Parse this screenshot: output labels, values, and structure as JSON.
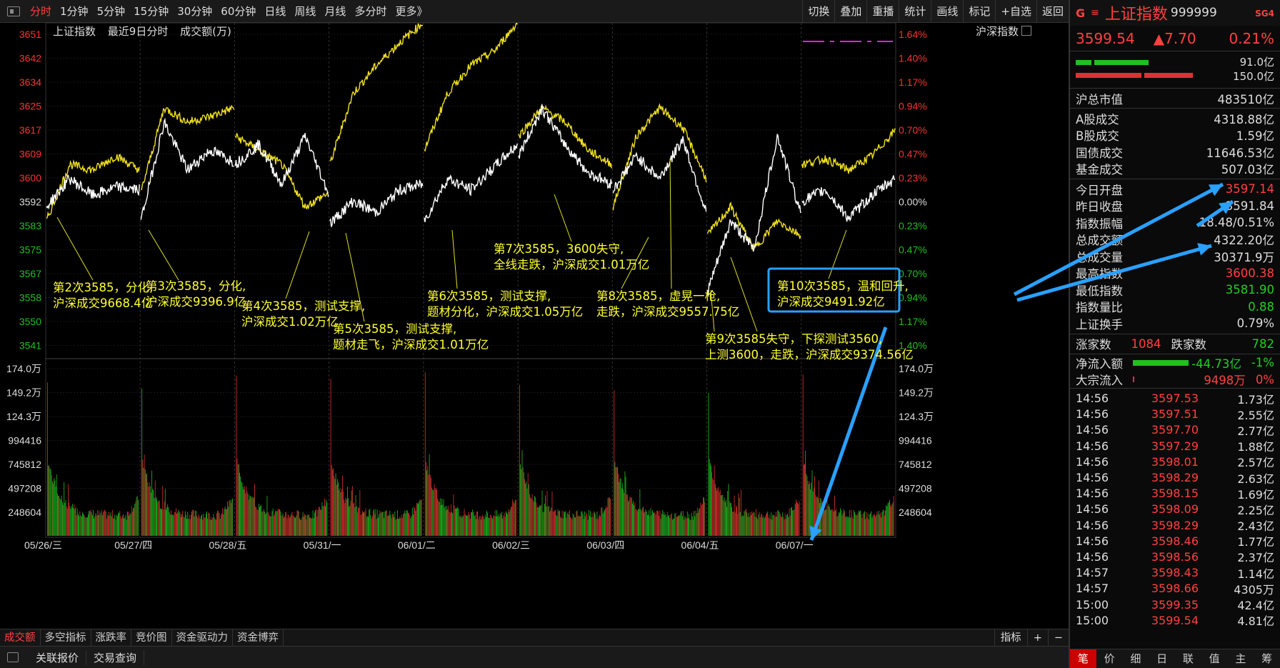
{
  "topbar": {
    "periods": [
      "分时",
      "1分钟",
      "5分钟",
      "15分钟",
      "30分钟",
      "60分钟",
      "日线",
      "周线",
      "月线",
      "多分时",
      "更多》"
    ],
    "active_index": 0,
    "tools": [
      "切换",
      "叠加",
      "重播",
      "统计",
      "画线",
      "标记",
      "+自选",
      "返回"
    ]
  },
  "chart": {
    "title": "上证指数",
    "subtitle": "最近9日分时",
    "volume_label": "成交额(万)",
    "index_label": "沪深指数",
    "price_ticks": [
      {
        "v": 3651,
        "c": "red"
      },
      {
        "v": 3642,
        "c": "red"
      },
      {
        "v": 3634,
        "c": "red"
      },
      {
        "v": 3625,
        "c": "red"
      },
      {
        "v": 3617,
        "c": "red"
      },
      {
        "v": 3609,
        "c": "red"
      },
      {
        "v": 3600,
        "c": "red"
      },
      {
        "v": 3592,
        "c": "white"
      },
      {
        "v": 3583,
        "c": "green"
      },
      {
        "v": 3575,
        "c": "green"
      },
      {
        "v": 3567,
        "c": "green"
      },
      {
        "v": 3558,
        "c": "green"
      },
      {
        "v": 3550,
        "c": "green"
      },
      {
        "v": 3541,
        "c": "green"
      }
    ],
    "pct_ticks": [
      "1.64%",
      "1.40%",
      "1.17%",
      "0.94%",
      "0.70%",
      "0.47%",
      "0.23%",
      "0.00%",
      "0.23%",
      "0.47%",
      "0.70%",
      "0.94%",
      "1.17%",
      "1.40%"
    ],
    "volume_ticks": [
      "174.0万",
      "149.2万",
      "124.3万",
      "994416",
      "745812",
      "497208",
      "248604"
    ],
    "dates": [
      "05/26/三",
      "05/27/四",
      "05/28/五",
      "05/31/一",
      "06/01/二",
      "06/02/三",
      "06/03/四",
      "06/04/五",
      "06/07/一"
    ]
  },
  "annotations": [
    {
      "id": "a2",
      "lines": [
        "第2次3585，分化,",
        "沪深成交9668.4亿"
      ]
    },
    {
      "id": "a3",
      "lines": [
        "第3次3585，分化,",
        "沪深成交9396.9亿"
      ]
    },
    {
      "id": "a4",
      "lines": [
        "第4次3585，测试支撑,",
        "沪深成交1.02万亿"
      ]
    },
    {
      "id": "a5",
      "lines": [
        "第5次3585，测试支撑,",
        "题材走飞，沪深成交1.01万亿"
      ]
    },
    {
      "id": "a6",
      "lines": [
        "第6次3585，测试支撑,",
        "题材分化，沪深成交1.05万亿"
      ]
    },
    {
      "id": "a7",
      "lines": [
        "第7次3585，3600失守,",
        "全线走跌，沪深成交1.01万亿"
      ]
    },
    {
      "id": "a8",
      "lines": [
        "第8次3585，虚晃一枪,",
        "走跌，沪深成交9557.75亿"
      ]
    },
    {
      "id": "a9",
      "lines": [
        "第9次3585失守，下探测试3560,",
        "上测3600，走跌，沪深成交9374.56亿"
      ]
    },
    {
      "id": "a10",
      "lines": [
        "第10次3585，温和回升,",
        "沪深成交9491.92亿"
      ]
    }
  ],
  "bottom_tabs": [
    "成交额",
    "多空指标",
    "涨跌率",
    "竞价图",
    "资金驱动力",
    "资金博弈"
  ],
  "bottom_right": [
    "指标",
    "+",
    "−"
  ],
  "status": [
    "关联报价",
    "交易查询"
  ],
  "quote": {
    "g": "G",
    "menu": "≡",
    "name": "上证指数",
    "code": "999999",
    "sg": "SG4",
    "price": "3599.54",
    "change": "▲7.70",
    "pct": "0.21%",
    "bar_vals": [
      "91.0亿",
      "150.0亿"
    ],
    "total_mv_label": "沪总市值",
    "total_mv": "483510亿",
    "stats1": [
      {
        "l": "A股成交",
        "r": "4318.88亿"
      },
      {
        "l": "B股成交",
        "r": "1.59亿"
      },
      {
        "l": "国债成交",
        "r": "11646.53亿"
      },
      {
        "l": "基金成交",
        "r": "507.03亿"
      }
    ],
    "stats2": [
      {
        "l": "今日开盘",
        "r": "3597.14",
        "c": "#ff4040"
      },
      {
        "l": "昨日收盘",
        "r": "3591.84",
        "c": "#ddd"
      },
      {
        "l": "指数振幅",
        "r": "18.48/0.51%",
        "c": "#ddd"
      },
      {
        "l": "总成交额",
        "r": "4322.20亿",
        "c": "#ddd"
      },
      {
        "l": "总成交量",
        "r": "30371.9万",
        "c": "#ddd"
      },
      {
        "l": "最高指数",
        "r": "3600.38",
        "c": "#ff4040"
      },
      {
        "l": "最低指数",
        "r": "3581.90",
        "c": "#20d020"
      },
      {
        "l": "指数量比",
        "r": "0.88",
        "c": "#20d020"
      },
      {
        "l": "上证换手",
        "r": "0.79%",
        "c": "#ddd"
      }
    ],
    "adv_label": "涨家数",
    "adv": "1084",
    "dec_label": "跌家数",
    "dec": "782",
    "flow1_label": "净流入额",
    "flow1": "-44.73亿",
    "flow1_pct": "-1%",
    "flow2_label": "大宗流入",
    "flow2": "9498万",
    "flow2_pct": "0%",
    "ticks": [
      {
        "t": "14:56",
        "p": "3597.53",
        "v": "1.73亿"
      },
      {
        "t": "14:56",
        "p": "3597.51",
        "v": "2.55亿"
      },
      {
        "t": "14:56",
        "p": "3597.70",
        "v": "2.77亿"
      },
      {
        "t": "14:56",
        "p": "3597.29",
        "v": "1.88亿"
      },
      {
        "t": "14:56",
        "p": "3598.01",
        "v": "2.57亿"
      },
      {
        "t": "14:56",
        "p": "3598.29",
        "v": "2.63亿"
      },
      {
        "t": "14:56",
        "p": "3598.15",
        "v": "1.69亿"
      },
      {
        "t": "14:56",
        "p": "3598.09",
        "v": "2.25亿"
      },
      {
        "t": "14:56",
        "p": "3598.29",
        "v": "2.43亿"
      },
      {
        "t": "14:56",
        "p": "3598.46",
        "v": "1.77亿"
      },
      {
        "t": "14:56",
        "p": "3598.56",
        "v": "2.37亿"
      },
      {
        "t": "14:57",
        "p": "3598.43",
        "v": "1.14亿"
      },
      {
        "t": "14:57",
        "p": "3598.66",
        "v": "4305万"
      },
      {
        "t": "15:00",
        "p": "3599.35",
        "v": "42.4亿"
      },
      {
        "t": "15:00",
        "p": "3599.54",
        "v": "4.81亿"
      }
    ],
    "bottom_tabs": [
      "笔",
      "价",
      "细",
      "日",
      "联",
      "值",
      "主",
      "筹"
    ]
  }
}
